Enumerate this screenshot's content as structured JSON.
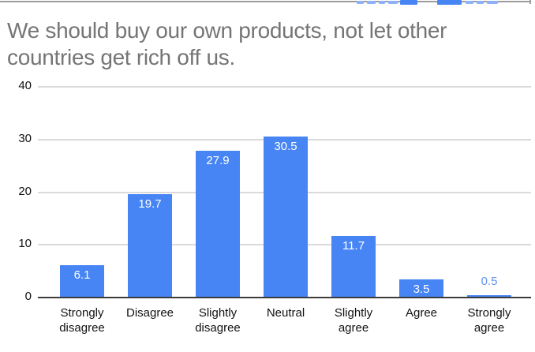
{
  "clipped_legend": {
    "swatch_color": "#4785f4",
    "text_fragment_color": "#8fb1f7",
    "border_color": "#9d9d9d"
  },
  "chart_data": {
    "type": "bar",
    "title": "We should buy our own products, not let other countries get rich off us.",
    "title_color": "#757575",
    "categories": [
      "Strongly disagree",
      "Disagree",
      "Slightly disagree",
      "Neutral",
      "Slightly agree",
      "Agree",
      "Strongly agree"
    ],
    "values": [
      6.1,
      19.7,
      27.9,
      30.5,
      11.7,
      3.5,
      0.5
    ],
    "xlabel": "",
    "ylabel": "",
    "ylim": [
      0,
      40
    ],
    "yticks": [
      0,
      10,
      20,
      30,
      40
    ],
    "grid": true,
    "legend_position": "top (cropped out of view)",
    "bar_color": "#4785f4",
    "data_label_color_inside": "#ffffff",
    "data_label_color_outside": "#6292f1",
    "axis_text_color": "#111111",
    "gridline_color": "#dadada",
    "baseline_color": "#3c3c3c"
  }
}
